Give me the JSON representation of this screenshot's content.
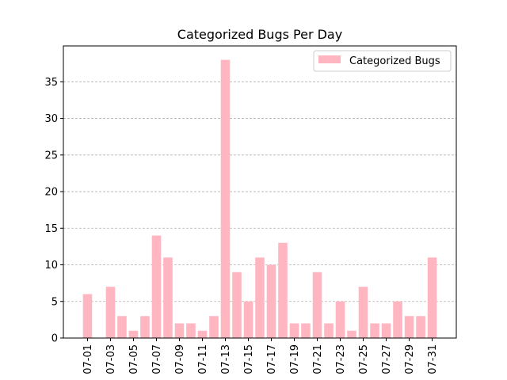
{
  "chart_data": {
    "type": "bar",
    "title": "Categorized Bugs Per Day",
    "xlabel": "",
    "ylabel": "",
    "categories": [
      "07-01",
      "07-02",
      "07-03",
      "07-04",
      "07-05",
      "07-06",
      "07-07",
      "07-08",
      "07-09",
      "07-10",
      "07-11",
      "07-12",
      "07-13",
      "07-14",
      "07-15",
      "07-16",
      "07-17",
      "07-18",
      "07-19",
      "07-20",
      "07-21",
      "07-22",
      "07-23",
      "07-24",
      "07-25",
      "07-26",
      "07-27",
      "07-28",
      "07-29",
      "07-30",
      "07-31"
    ],
    "series": [
      {
        "name": "Categorized Bugs",
        "values": [
          6,
          0,
          7,
          3,
          1,
          3,
          14,
          11,
          2,
          2,
          1,
          3,
          38,
          9,
          5,
          11,
          10,
          13,
          2,
          2,
          9,
          2,
          5,
          1,
          7,
          2,
          2,
          5,
          3,
          3,
          11
        ]
      }
    ],
    "tick_labels_x": [
      "07-01",
      "07-03",
      "07-05",
      "07-07",
      "07-09",
      "07-11",
      "07-13",
      "07-15",
      "07-17",
      "07-19",
      "07-21",
      "07-23",
      "07-25",
      "07-27",
      "07-29",
      "07-31"
    ],
    "yticks": [
      0,
      5,
      10,
      15,
      20,
      25,
      30,
      35
    ],
    "ylim": [
      0,
      39.9
    ],
    "grid": "y-dashed",
    "legend": "top-right",
    "bar_color": "#ffb6c1",
    "grid_color": "#b0b0b0"
  }
}
